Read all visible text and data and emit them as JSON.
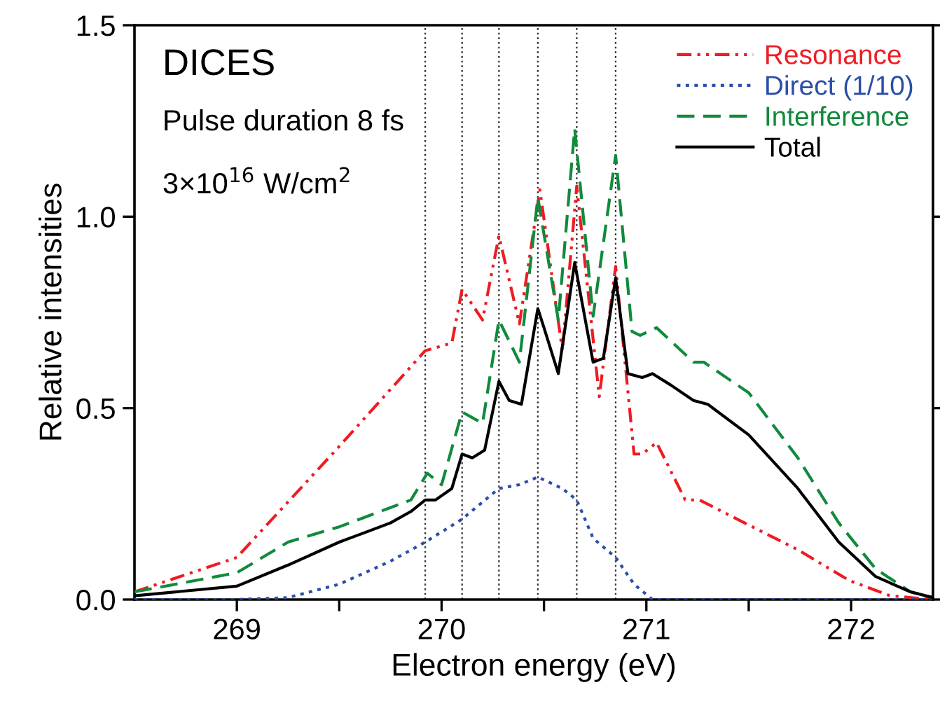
{
  "chart_data": {
    "type": "line",
    "xlabel": "Electron energy (eV)",
    "ylabel": "Relative intensities",
    "xlim": [
      268.5,
      272.4
    ],
    "ylim": [
      0,
      1.5
    ],
    "xticks": [
      {
        "value": 269,
        "label": "269"
      },
      {
        "value": 269.5,
        "label": null
      },
      {
        "value": 270,
        "label": "270"
      },
      {
        "value": 270.5,
        "label": null
      },
      {
        "value": 271,
        "label": "271"
      },
      {
        "value": 271.5,
        "label": null
      },
      {
        "value": 272,
        "label": "272"
      }
    ],
    "yticks": [
      {
        "value": 0,
        "label": "0.0"
      },
      {
        "value": 0.5,
        "label": "0.5"
      },
      {
        "value": 1,
        "label": "1.0"
      },
      {
        "value": 1.5,
        "label": "1.5"
      }
    ],
    "legend": "top right",
    "grid": false,
    "annotations": [
      "DICES",
      "Pulse duration 8 fs",
      "3×10$^{16}$ W/cm$^{2}$"
    ],
    "ref_lines": [
      {
        "axis": "x",
        "value": 269.92,
        "color": "#333333",
        "line_style": "dotted"
      },
      {
        "axis": "x",
        "value": 270.1,
        "color": "#333333",
        "line_style": "dotted"
      },
      {
        "axis": "x",
        "value": 270.28,
        "color": "#333333",
        "line_style": "dotted"
      },
      {
        "axis": "x",
        "value": 270.47,
        "color": "#333333",
        "line_style": "dotted"
      },
      {
        "axis": "x",
        "value": 270.66,
        "color": "#333333",
        "line_style": "dotted"
      },
      {
        "axis": "x",
        "value": 270.85,
        "color": "#333333",
        "line_style": "dotted"
      }
    ],
    "series": [
      {
        "name": "Resonance",
        "color": "#ee1c24",
        "line_style": "dashdotdot",
        "x": [
          268.5,
          269.0,
          269.5,
          269.92,
          270.05,
          270.1,
          270.2,
          270.28,
          270.38,
          270.48,
          270.59,
          270.66,
          270.77,
          270.85,
          270.94,
          270.98,
          271.05,
          271.19,
          271.26,
          271.48,
          271.74,
          271.99,
          272.19,
          272.4
        ],
        "values": [
          0.02,
          0.11,
          0.4,
          0.65,
          0.67,
          0.81,
          0.73,
          0.95,
          0.72,
          1.07,
          0.65,
          1.08,
          0.53,
          0.87,
          0.38,
          0.38,
          0.41,
          0.26,
          0.26,
          0.2,
          0.13,
          0.05,
          0.01,
          0.0
        ]
      },
      {
        "name": "Direct (1/10)",
        "color": "#2b4fa8",
        "line_style": "dotted",
        "x": [
          268.5,
          269.0,
          269.25,
          269.5,
          269.75,
          269.92,
          270.1,
          270.28,
          270.38,
          270.47,
          270.59,
          270.66,
          270.74,
          270.85,
          270.94,
          271.03,
          271.5,
          272.4
        ],
        "values": [
          0.0,
          0.0,
          0.005,
          0.04,
          0.1,
          0.15,
          0.21,
          0.29,
          0.3,
          0.32,
          0.29,
          0.26,
          0.16,
          0.11,
          0.04,
          0.0,
          0.0,
          0.0
        ]
      },
      {
        "name": "Interference",
        "color": "#118a3c",
        "line_style": "dashed",
        "x": [
          268.5,
          269.0,
          269.25,
          269.5,
          269.6,
          269.75,
          269.85,
          269.93,
          270.0,
          270.1,
          270.2,
          270.28,
          270.38,
          270.47,
          270.57,
          270.65,
          270.74,
          270.85,
          270.93,
          270.97,
          271.05,
          271.23,
          271.28,
          271.5,
          271.74,
          271.94,
          272.12,
          272.29,
          272.4
        ],
        "values": [
          0.02,
          0.07,
          0.15,
          0.19,
          0.21,
          0.24,
          0.26,
          0.33,
          0.3,
          0.49,
          0.46,
          0.73,
          0.62,
          1.05,
          0.73,
          1.23,
          0.74,
          1.16,
          0.7,
          0.69,
          0.71,
          0.62,
          0.62,
          0.54,
          0.37,
          0.2,
          0.08,
          0.02,
          0.005
        ]
      },
      {
        "name": "Total",
        "color": "#000000",
        "line_style": "solid",
        "x": [
          268.5,
          269.0,
          269.25,
          269.5,
          269.75,
          269.85,
          269.92,
          269.97,
          270.05,
          270.1,
          270.15,
          270.21,
          270.28,
          270.33,
          270.39,
          270.47,
          270.5,
          270.57,
          270.65,
          270.74,
          270.79,
          270.85,
          270.91,
          270.98,
          271.03,
          271.12,
          271.23,
          271.3,
          271.5,
          271.74,
          271.94,
          272.12,
          272.29,
          272.4
        ],
        "values": [
          0.01,
          0.035,
          0.09,
          0.15,
          0.2,
          0.23,
          0.26,
          0.26,
          0.29,
          0.38,
          0.37,
          0.39,
          0.57,
          0.52,
          0.51,
          0.76,
          0.71,
          0.59,
          0.88,
          0.62,
          0.63,
          0.84,
          0.59,
          0.58,
          0.59,
          0.56,
          0.52,
          0.51,
          0.43,
          0.29,
          0.15,
          0.06,
          0.02,
          0.005
        ]
      }
    ]
  }
}
